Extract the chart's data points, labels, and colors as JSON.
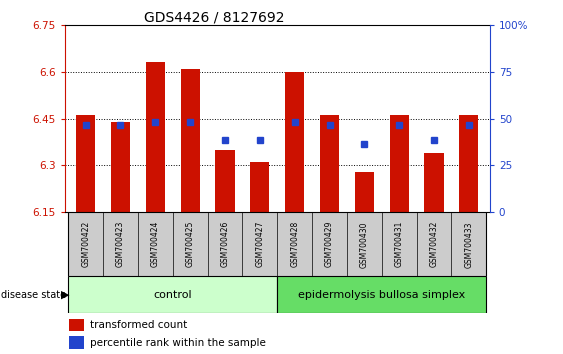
{
  "title": "GDS4426 / 8127692",
  "samples": [
    "GSM700422",
    "GSM700423",
    "GSM700424",
    "GSM700425",
    "GSM700426",
    "GSM700427",
    "GSM700428",
    "GSM700429",
    "GSM700430",
    "GSM700431",
    "GSM700432",
    "GSM700433"
  ],
  "bar_values": [
    6.46,
    6.44,
    6.63,
    6.61,
    6.35,
    6.31,
    6.6,
    6.46,
    6.28,
    6.46,
    6.34,
    6.46
  ],
  "percentile_values": [
    6.43,
    6.43,
    6.44,
    6.44,
    6.38,
    6.38,
    6.44,
    6.43,
    6.37,
    6.43,
    6.38,
    6.43
  ],
  "ymin": 6.15,
  "ymax": 6.75,
  "yticks": [
    6.15,
    6.3,
    6.45,
    6.6,
    6.75
  ],
  "ytick_labels": [
    "6.15",
    "6.3",
    "6.45",
    "6.6",
    "6.75"
  ],
  "right_yticks": [
    0,
    25,
    50,
    75,
    100
  ],
  "right_ytick_labels": [
    "0",
    "25",
    "50",
    "75",
    "100%"
  ],
  "bar_color": "#cc1100",
  "percentile_color": "#2244cc",
  "control_label": "control",
  "disease_label": "epidermolysis bullosa simplex",
  "control_indices": [
    0,
    1,
    2,
    3,
    4,
    5
  ],
  "disease_indices": [
    6,
    7,
    8,
    9,
    10,
    11
  ],
  "control_bg": "#ccffcc",
  "disease_bg": "#66dd66",
  "sample_bg": "#cccccc",
  "legend_bar_label": "transformed count",
  "legend_pct_label": "percentile rank within the sample",
  "background_color": "#ffffff"
}
